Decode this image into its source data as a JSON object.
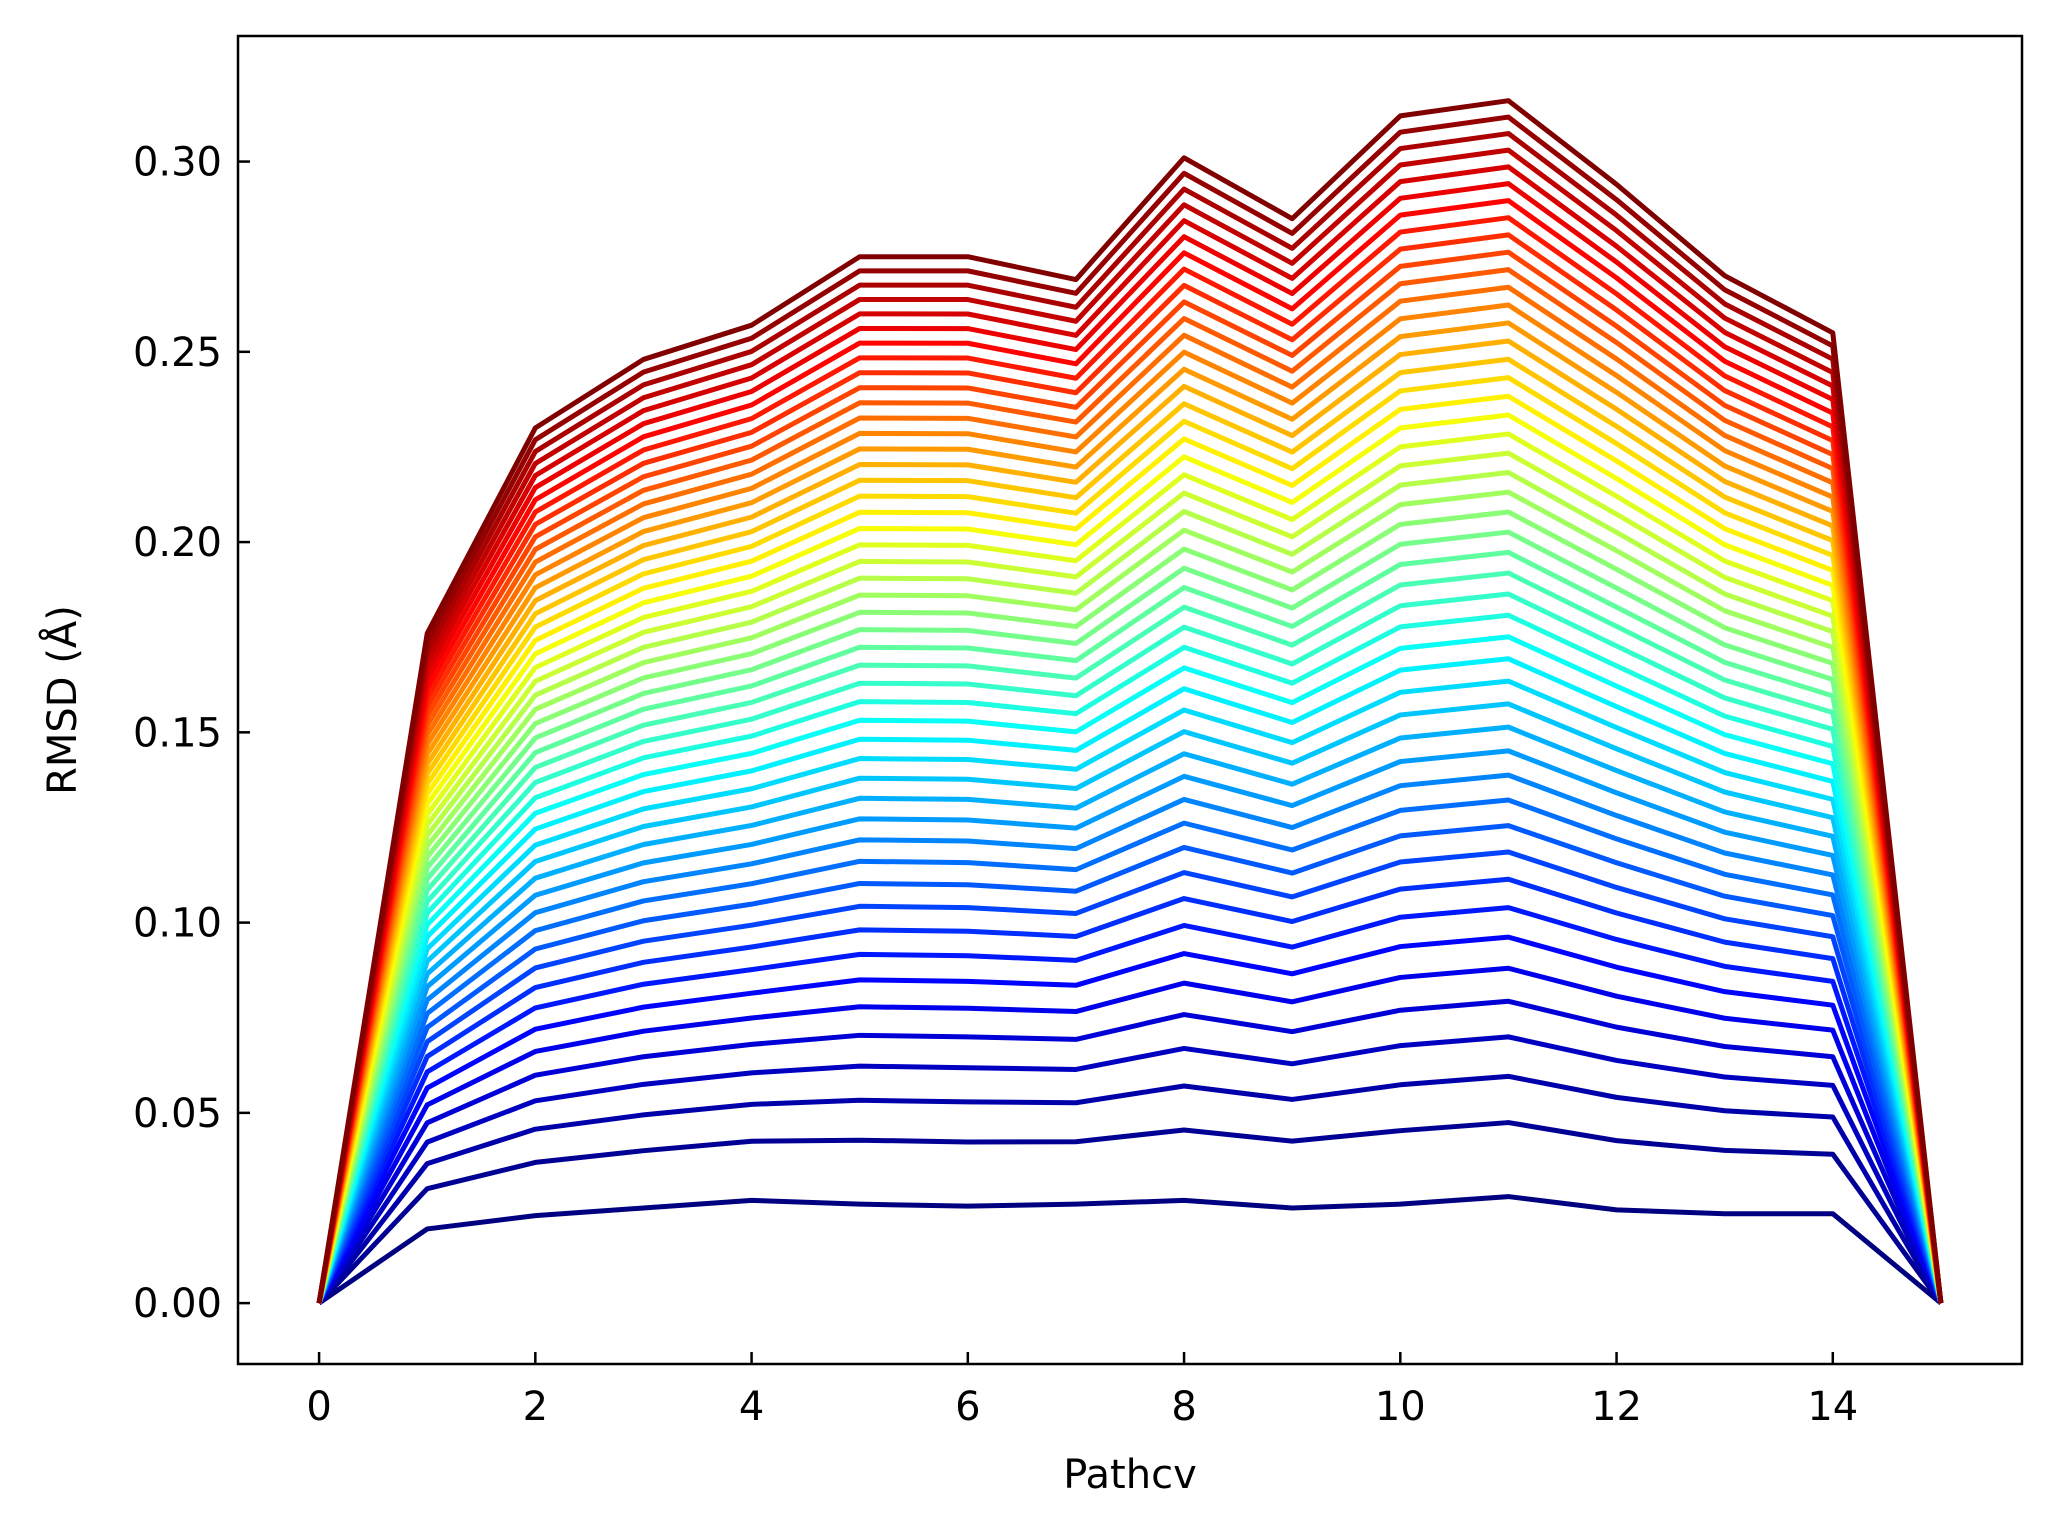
{
  "chart_data": {
    "type": "line",
    "title": "",
    "xlabel": "Pathcv",
    "ylabel": "RMSD (Å)",
    "xlim": [
      -0.75,
      15.75
    ],
    "ylim": [
      -0.016,
      0.333
    ],
    "xticks": [
      0,
      2,
      4,
      6,
      8,
      10,
      12,
      14
    ],
    "xtick_labels": [
      "0",
      "2",
      "4",
      "6",
      "8",
      "10",
      "12",
      "14"
    ],
    "yticks": [
      0.0,
      0.05,
      0.1,
      0.15,
      0.2,
      0.25,
      0.3
    ],
    "ytick_labels": [
      "0.00",
      "0.05",
      "0.10",
      "0.15",
      "0.20",
      "0.25",
      "0.30"
    ],
    "grid": false,
    "tick_direction": "in",
    "colormap": "jet",
    "x": [
      0,
      1,
      2,
      3,
      4,
      5,
      6,
      7,
      8,
      9,
      10,
      11,
      12,
      13,
      14,
      15
    ],
    "series_count": 48,
    "series_low": [
      0,
      0.0195,
      0.023,
      0.025,
      0.027,
      0.026,
      0.0255,
      0.026,
      0.027,
      0.025,
      0.026,
      0.028,
      0.0245,
      0.0235,
      0.0235,
      0
    ],
    "series_high": [
      0,
      0.176,
      0.23,
      0.248,
      0.257,
      0.275,
      0.275,
      0.269,
      0.301,
      0.285,
      0.312,
      0.316,
      0.294,
      0.27,
      0.255,
      0
    ]
  }
}
